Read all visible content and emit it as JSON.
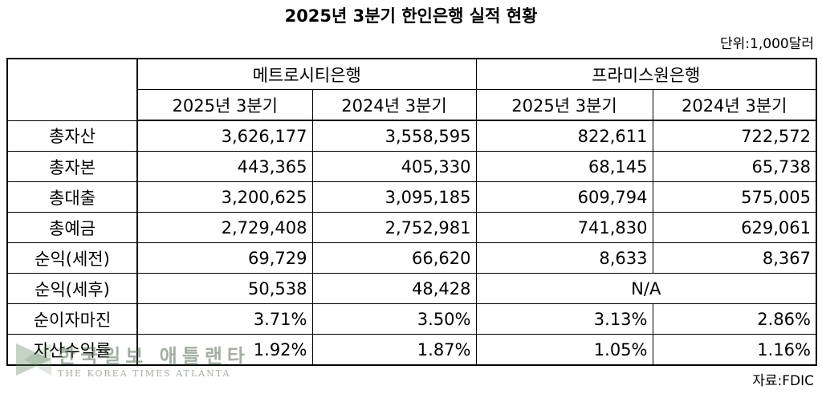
{
  "title": "2025년 3분기 한인은행 실적 현황",
  "unit": "단위:1,000달러",
  "table": {
    "groups": [
      "메트로시티은행",
      "프라미스원은행"
    ],
    "subheaders": [
      "2025년 3분기",
      "2024년 3분기",
      "2025년 3분기",
      "2024년 3분기"
    ],
    "rows": [
      [
        "총자산",
        "3,626,177",
        "3,558,595",
        "822,611",
        "722,572"
      ],
      [
        "총자본",
        "443,365",
        "405,330",
        "68,145",
        "65,738"
      ],
      [
        "총대출",
        "3,200,625",
        "3,095,185",
        "609,794",
        "575,005"
      ],
      [
        "총예금",
        "2,729,408",
        "2,752,981",
        "741,830",
        "629,061"
      ],
      [
        "순익(세전)",
        "69,729",
        "66,620",
        "8,633",
        "8,367"
      ],
      [
        "순익(세후)",
        "50,538",
        "48,428",
        "N/A"
      ],
      [
        "순이자마진",
        "3.71%",
        "3.50%",
        "3.13%",
        "2.86%"
      ],
      [
        "자산수익률",
        "1.92%",
        "1.87%",
        "1.05%",
        "1.16%"
      ]
    ]
  },
  "watermark": {
    "name": "한국일보 애틀랜타",
    "english": "THE KOREA TIMES ATLANTA"
  },
  "source": "자료:FDIC"
}
